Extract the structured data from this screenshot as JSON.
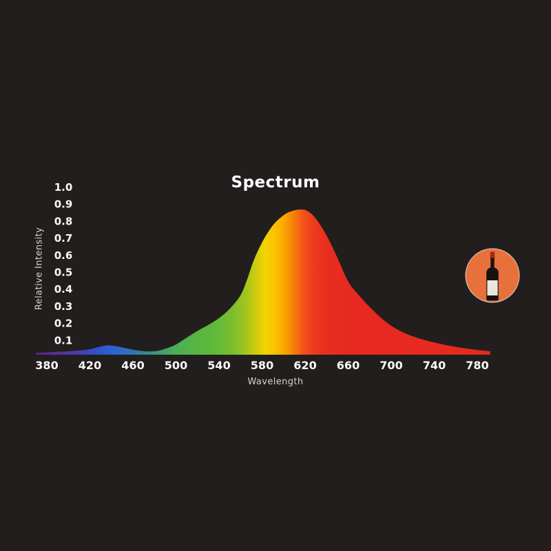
{
  "window": {
    "background_color": "#211e1d"
  },
  "chart": {
    "title": "Spectrum",
    "x_axis_label": "Wavelength",
    "y_axis_label": "Relative Intensity"
  },
  "text_colors": {
    "tick": "#fbfaf9",
    "axis_label": "#d6d3d0",
    "title": "#ffffff"
  },
  "chart_data": {
    "type": "area",
    "title": "Spectrum",
    "xlabel": "Wavelength",
    "ylabel": "Relative Intensity",
    "xlim": [
      370,
      792
    ],
    "ylim": [
      0,
      1.0
    ],
    "x_ticks": [
      380,
      420,
      460,
      500,
      540,
      580,
      620,
      660,
      700,
      740,
      780
    ],
    "y_ticks": [
      1.0,
      0.9,
      0.8,
      0.7,
      0.6,
      0.5,
      0.4,
      0.3,
      0.2,
      0.1
    ],
    "grid": false,
    "legend": false,
    "peak": {
      "wavelength": 615,
      "intensity": 0.85
    },
    "local_maximum": {
      "wavelength": 436,
      "intensity": 0.055
    },
    "series": [
      {
        "name": "relative-intensity",
        "points": [
          [
            370,
            0.012
          ],
          [
            380,
            0.014
          ],
          [
            390,
            0.018
          ],
          [
            400,
            0.02
          ],
          [
            410,
            0.025
          ],
          [
            420,
            0.032
          ],
          [
            428,
            0.045
          ],
          [
            436,
            0.055
          ],
          [
            444,
            0.05
          ],
          [
            452,
            0.04
          ],
          [
            462,
            0.027
          ],
          [
            472,
            0.02
          ],
          [
            482,
            0.022
          ],
          [
            490,
            0.035
          ],
          [
            500,
            0.06
          ],
          [
            510,
            0.1
          ],
          [
            520,
            0.14
          ],
          [
            530,
            0.175
          ],
          [
            540,
            0.215
          ],
          [
            550,
            0.27
          ],
          [
            560,
            0.35
          ],
          [
            566,
            0.44
          ],
          [
            572,
            0.55
          ],
          [
            580,
            0.66
          ],
          [
            590,
            0.76
          ],
          [
            600,
            0.82
          ],
          [
            608,
            0.845
          ],
          [
            615,
            0.853
          ],
          [
            622,
            0.845
          ],
          [
            630,
            0.8
          ],
          [
            640,
            0.7
          ],
          [
            650,
            0.57
          ],
          [
            660,
            0.43
          ],
          [
            670,
            0.35
          ],
          [
            680,
            0.28
          ],
          [
            690,
            0.22
          ],
          [
            700,
            0.17
          ],
          [
            710,
            0.135
          ],
          [
            720,
            0.108
          ],
          [
            730,
            0.088
          ],
          [
            740,
            0.072
          ],
          [
            750,
            0.058
          ],
          [
            760,
            0.046
          ],
          [
            770,
            0.036
          ],
          [
            780,
            0.028
          ],
          [
            790,
            0.022
          ],
          [
            792,
            0.02
          ]
        ]
      }
    ],
    "spectrum_gradient": [
      {
        "nm": 370,
        "color": "#63217e"
      },
      {
        "nm": 395,
        "color": "#58319f"
      },
      {
        "nm": 415,
        "color": "#3f43b8"
      },
      {
        "nm": 430,
        "color": "#2f55cc"
      },
      {
        "nm": 443,
        "color": "#2e62d2"
      },
      {
        "nm": 458,
        "color": "#2f74b8"
      },
      {
        "nm": 472,
        "color": "#35888f"
      },
      {
        "nm": 486,
        "color": "#3e9c72"
      },
      {
        "nm": 500,
        "color": "#4aae57"
      },
      {
        "nm": 515,
        "color": "#55b546"
      },
      {
        "nm": 535,
        "color": "#5eb93a"
      },
      {
        "nm": 552,
        "color": "#79bd2e"
      },
      {
        "nm": 565,
        "color": "#a3c51e"
      },
      {
        "nm": 575,
        "color": "#d1cd0d"
      },
      {
        "nm": 583,
        "color": "#f2d400"
      },
      {
        "nm": 593,
        "color": "#fac000"
      },
      {
        "nm": 602,
        "color": "#f9a000"
      },
      {
        "nm": 610,
        "color": "#f67c08"
      },
      {
        "nm": 618,
        "color": "#f25417"
      },
      {
        "nm": 628,
        "color": "#ec3a1d"
      },
      {
        "nm": 642,
        "color": "#e82d20"
      },
      {
        "nm": 660,
        "color": "#e62a21"
      },
      {
        "nm": 792,
        "color": "#e62a21"
      }
    ]
  },
  "icon_badge": {
    "name": "wine-bottle",
    "colors": {
      "circle": "#e8713b",
      "ring": "#d9cfc5",
      "bottle": "#171210",
      "capsule": "#9e2a1f",
      "capsule_band": "#6f1c13",
      "label": "#eae6db"
    }
  }
}
